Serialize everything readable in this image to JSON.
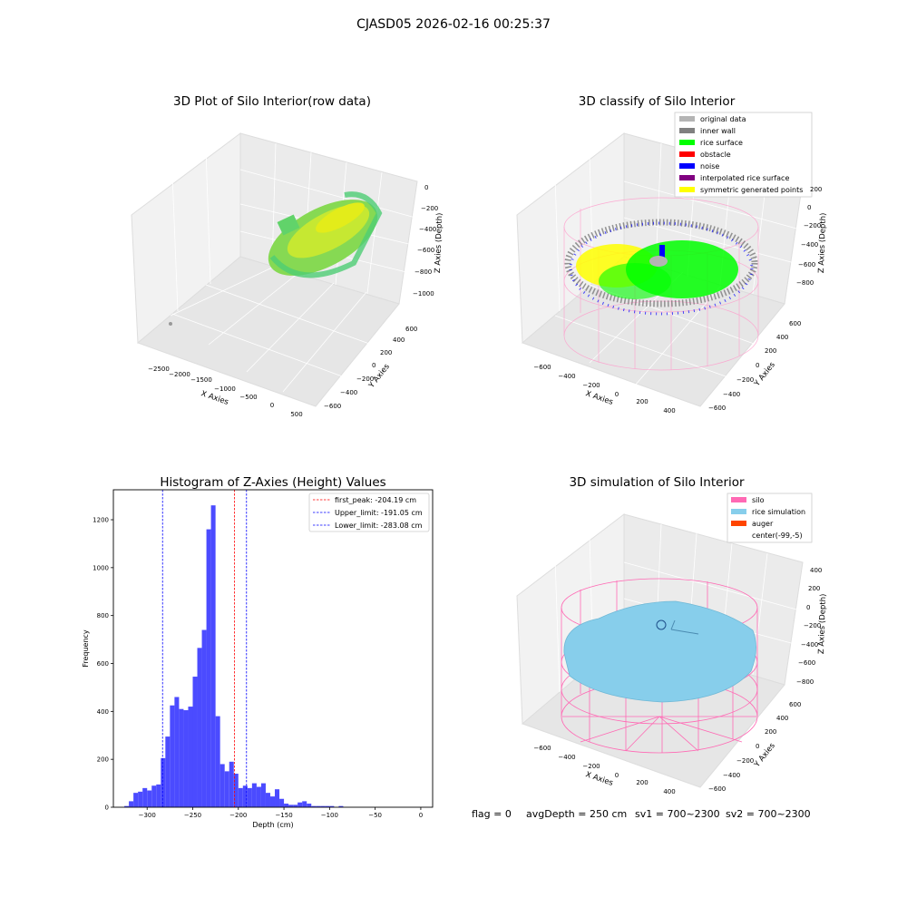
{
  "figure_title": "CJASD05 2026-02-16 00:25:37",
  "status_line": {
    "flag": "flag = 0",
    "avg_depth": "avgDepth = 250 cm",
    "sv1": "sv1 = 700~2300",
    "sv2": "sv2 = 700~2300"
  },
  "colors": {
    "rice_gradient": [
      "#43d07a",
      "#a8e23a",
      "#e3ec1a"
    ],
    "original": "#b4b4b4",
    "inner_wall": "#808080",
    "rice_surface": "#00ff00",
    "obstacle": "#ff0000",
    "noise": "#0000ff",
    "interpolated": "#800080",
    "symmetric": "#ffff00",
    "silo": "#ff69b4",
    "rice_sim": "#87ceeb",
    "auger": "#ff4500",
    "hist_bar": "#4b4bff"
  },
  "chart_data": [
    {
      "type": "scatter3d",
      "title": "3D Plot of Silo Interior(row data)",
      "xlabel": "X Axies",
      "ylabel": "Y Axies",
      "zlabel": "Z Axies (Depth)",
      "x_ticks": [
        "−2500",
        "−2000",
        "−1500",
        "−1000",
        "−500",
        "0",
        "500"
      ],
      "y_ticks": [
        "−600",
        "−400",
        "−200",
        "0",
        "200",
        "400",
        "600"
      ],
      "z_ticks": [
        "0",
        "−200",
        "−400",
        "−600",
        "−800",
        "−1000"
      ],
      "xlim": [
        -2700,
        600
      ],
      "ylim": [
        -650,
        650
      ],
      "zlim": [
        -1100,
        50
      ]
    },
    {
      "type": "scatter3d",
      "title": "3D classify of Silo Interior",
      "xlabel": "X Axies",
      "ylabel": "Y Axies",
      "zlabel": "Z Axies (Depth)",
      "x_ticks": [
        "−600",
        "−400",
        "−200",
        "0",
        "200",
        "400"
      ],
      "y_ticks": [
        "−600",
        "−400",
        "−200",
        "0",
        "200",
        "400",
        "600"
      ],
      "z_ticks": [
        "200",
        "0",
        "−200",
        "−400",
        "−600",
        "−800"
      ],
      "legend": [
        "original data",
        "inner wall",
        "rice surface",
        "obstacle",
        "noise",
        "interpolated rice surface",
        "symmetric generated points"
      ],
      "legend_position": "top-right"
    },
    {
      "type": "bar",
      "title": "Histogram of Z-Axies (Height) Values",
      "xlabel": "Depth (cm)",
      "ylabel": "Frequency",
      "xlim": [
        -337,
        13
      ],
      "ylim": [
        0,
        1325
      ],
      "x_ticks": [
        -300,
        -250,
        -200,
        -150,
        -100,
        -50,
        0
      ],
      "y_ticks": [
        0,
        200,
        400,
        600,
        800,
        1000,
        1200
      ],
      "bin_start": -325,
      "bin_width": 5,
      "values": [
        5,
        25,
        60,
        65,
        80,
        70,
        90,
        95,
        205,
        295,
        425,
        460,
        410,
        405,
        420,
        545,
        665,
        740,
        1160,
        1260,
        380,
        180,
        150,
        190,
        140,
        80,
        90,
        80,
        100,
        85,
        100,
        60,
        45,
        75,
        35,
        15,
        10,
        10,
        20,
        25,
        15,
        5,
        5,
        5,
        5,
        5,
        0,
        5,
        0,
        0
      ],
      "vlines": [
        {
          "label": "first_peak: -204.19 cm",
          "x": -204.19,
          "color": "#ff0000"
        },
        {
          "label": "Upper_limit: -191.05 cm",
          "x": -191.05,
          "color": "#0000ff"
        },
        {
          "label": "Lower_limit: -283.08 cm",
          "x": -283.08,
          "color": "#0000ff"
        }
      ],
      "legend_position": "top-right"
    },
    {
      "type": "surface3d",
      "title": "3D simulation of Silo Interior",
      "xlabel": "X Axies",
      "ylabel": "Y Axies",
      "zlabel": "Z Axies (Depth)",
      "x_ticks": [
        "−600",
        "−400",
        "−200",
        "0",
        "200",
        "400"
      ],
      "y_ticks": [
        "−600",
        "−400",
        "−200",
        "0",
        "200",
        "400",
        "600"
      ],
      "z_ticks": [
        "400",
        "200",
        "0",
        "−200",
        "−400",
        "−600",
        "−800"
      ],
      "legend": [
        "silo",
        "rice simulation",
        "auger",
        "center(-99,-5)"
      ],
      "legend_position": "top-right"
    }
  ]
}
